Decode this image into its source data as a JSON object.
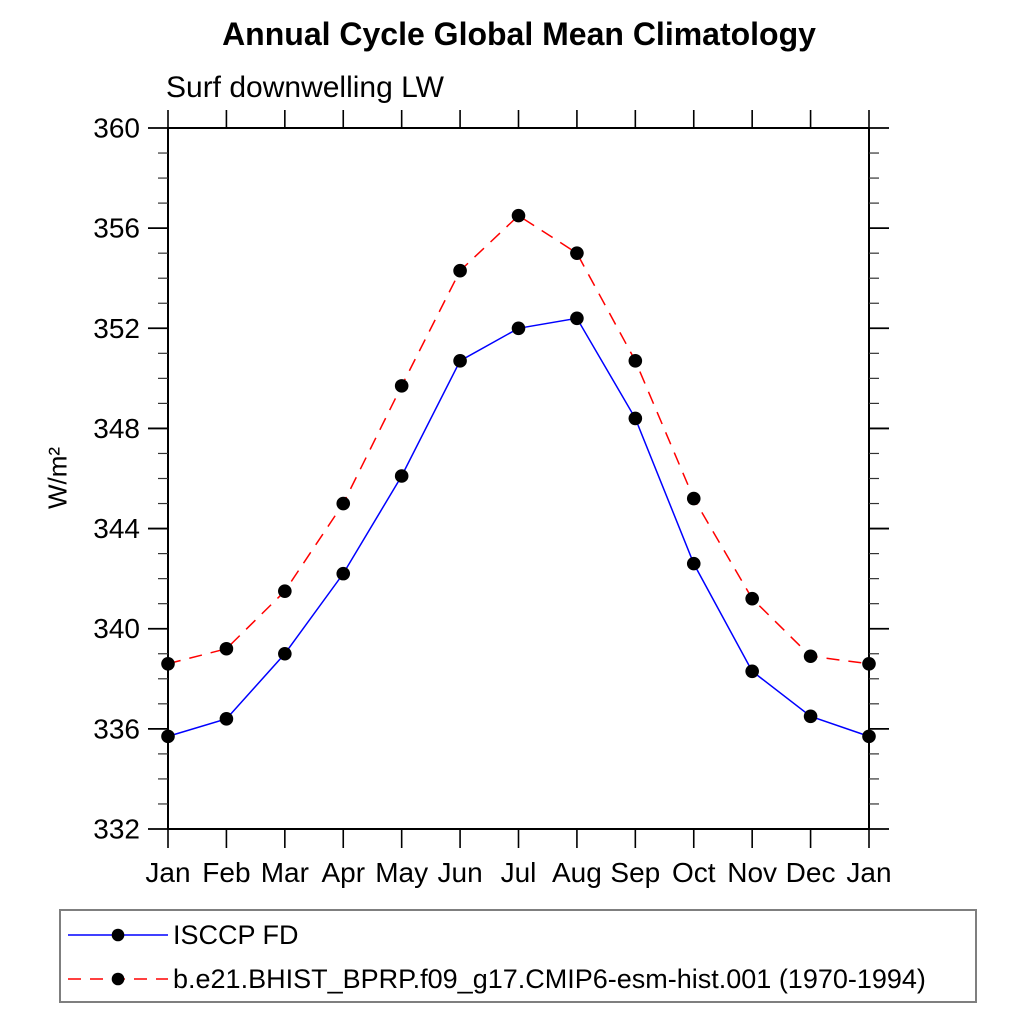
{
  "title": "Annual Cycle Global Mean Climatology",
  "subtitle": "Surf downwelling LW",
  "chart_data": {
    "type": "line",
    "categories": [
      "Jan",
      "Feb",
      "Mar",
      "Apr",
      "May",
      "Jun",
      "Jul",
      "Aug",
      "Sep",
      "Oct",
      "Nov",
      "Dec",
      "Jan"
    ],
    "xlabel": "",
    "ylabel": "W/m²",
    "ylim": [
      332,
      360
    ],
    "ytick_step": 4,
    "yminor_step": 1,
    "ytick_labels": [
      "332",
      "336",
      "340",
      "344",
      "348",
      "352",
      "356",
      "360"
    ],
    "grid": false,
    "legend_position": "bottom",
    "frame_color": "#000000",
    "marker": "filled-circle",
    "marker_color": "#000000",
    "series": [
      {
        "name": "ISCCP FD",
        "color": "#0000ff",
        "line_style": "solid",
        "values": [
          335.7,
          336.4,
          339.0,
          342.2,
          346.1,
          350.7,
          352.0,
          352.4,
          348.4,
          342.6,
          338.3,
          336.5,
          335.7
        ]
      },
      {
        "name": "b.e21.BHIST_BPRP.f09_g17.CMIP6-esm-hist.001 (1970-1994)",
        "color": "#ff0000",
        "line_style": "dashed",
        "values": [
          338.6,
          339.2,
          341.5,
          345.0,
          349.7,
          354.3,
          356.5,
          355.0,
          350.7,
          345.2,
          341.2,
          338.9,
          338.6
        ]
      }
    ]
  }
}
